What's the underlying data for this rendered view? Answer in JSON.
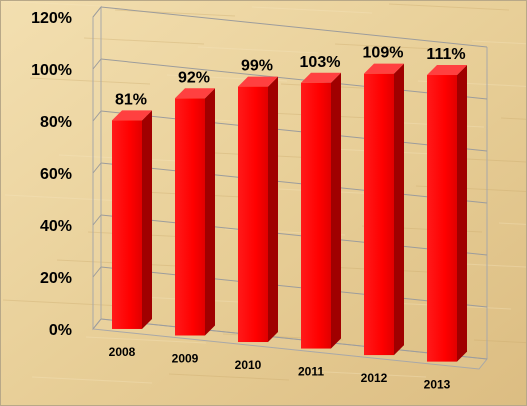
{
  "chart_data": {
    "type": "bar",
    "categories": [
      "2008",
      "2009",
      "2010",
      "2011",
      "2012",
      "2013"
    ],
    "values": [
      81,
      92,
      99,
      103,
      109,
      111
    ],
    "data_labels": [
      "81%",
      "92%",
      "99%",
      "103%",
      "109%",
      "111%"
    ],
    "ylim": [
      0,
      120
    ],
    "yticks": [
      0,
      20,
      40,
      60,
      80,
      100,
      120
    ],
    "ytick_labels": [
      "0%",
      "20%",
      "40%",
      "60%",
      "80%",
      "100%",
      "120%"
    ],
    "title": "",
    "xlabel": "",
    "ylabel": "",
    "legend": "none",
    "grid": true,
    "style": "3d-bar",
    "bar_color": "#ff0000",
    "background": "parchment"
  }
}
